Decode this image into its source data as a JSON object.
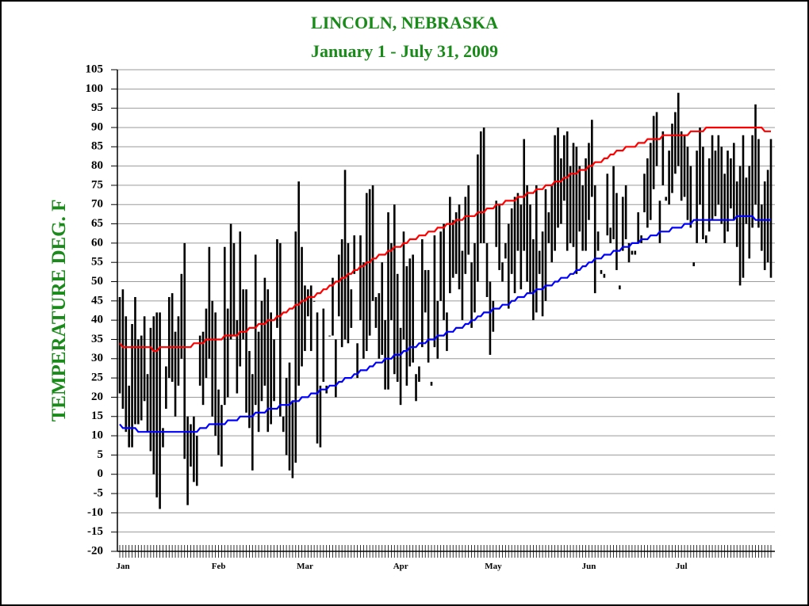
{
  "chart_data": {
    "type": "range_bar",
    "title": "LINCOLN, NEBRASKA",
    "subtitle": "January 1 - July 31,  2009",
    "y_label": "TEMPERATURE DEG. F",
    "ylim": [
      -20,
      105
    ],
    "yticks": [
      -20,
      -15,
      -10,
      -5,
      0,
      5,
      10,
      15,
      20,
      25,
      30,
      35,
      40,
      45,
      50,
      55,
      60,
      65,
      70,
      75,
      80,
      85,
      90,
      95,
      100,
      105
    ],
    "grid": true,
    "bar_color": "#000000",
    "normal_high_color": "#ff0000",
    "normal_low_color": "#0000ff",
    "title_color": "#1a8a1a",
    "categories": [
      "Jan",
      null,
      null,
      null,
      null,
      null,
      null,
      null,
      null,
      null,
      null,
      null,
      null,
      null,
      null,
      null,
      null,
      null,
      null,
      null,
      null,
      null,
      null,
      null,
      null,
      null,
      null,
      null,
      null,
      null,
      null,
      "Feb",
      null,
      null,
      null,
      null,
      null,
      null,
      null,
      null,
      null,
      null,
      null,
      null,
      null,
      null,
      null,
      null,
      null,
      null,
      null,
      null,
      null,
      null,
      null,
      null,
      null,
      null,
      null,
      "Mar",
      null,
      null,
      null,
      null,
      null,
      null,
      null,
      null,
      null,
      null,
      null,
      null,
      null,
      null,
      null,
      null,
      null,
      null,
      null,
      null,
      null,
      null,
      null,
      null,
      null,
      null,
      null,
      null,
      null,
      null,
      "Apr",
      null,
      null,
      null,
      null,
      null,
      null,
      null,
      null,
      null,
      null,
      null,
      null,
      null,
      null,
      null,
      null,
      null,
      null,
      null,
      null,
      null,
      null,
      null,
      null,
      null,
      null,
      null,
      null,
      null,
      "May",
      null,
      null,
      null,
      null,
      null,
      null,
      null,
      null,
      null,
      null,
      null,
      null,
      null,
      null,
      null,
      null,
      null,
      null,
      null,
      null,
      null,
      null,
      null,
      null,
      null,
      null,
      null,
      null,
      null,
      null,
      "Jun",
      null,
      null,
      null,
      null,
      null,
      null,
      null,
      null,
      null,
      null,
      null,
      null,
      null,
      null,
      null,
      null,
      null,
      null,
      null,
      null,
      null,
      null,
      null,
      null,
      null,
      null,
      null,
      null,
      null,
      "Jul",
      null,
      null,
      null,
      null,
      null,
      null,
      null,
      null,
      null,
      null,
      null,
      null,
      null,
      null,
      null,
      null,
      null,
      null,
      null,
      null,
      null,
      null,
      null,
      null,
      null,
      null,
      null,
      null,
      null,
      null
    ],
    "highs": [
      46,
      48,
      41,
      23,
      39,
      46,
      35,
      36,
      41,
      26,
      38,
      41,
      42,
      42,
      12,
      28,
      46,
      47,
      37,
      41,
      52,
      60,
      15,
      13,
      15,
      10,
      36,
      37,
      43,
      59,
      45,
      42,
      22,
      18,
      59,
      43,
      65,
      60,
      40,
      63,
      48,
      48,
      32,
      26,
      57,
      37,
      45,
      51,
      48,
      42,
      35,
      61,
      60,
      15,
      25,
      29,
      19,
      63,
      76,
      59,
      49,
      48,
      49,
      45,
      42,
      23,
      43,
      23,
      36,
      51,
      35,
      57,
      61,
      79,
      60,
      48,
      62,
      34,
      62,
      55,
      73,
      74,
      75,
      46,
      47,
      55,
      40,
      68,
      60,
      70,
      52,
      38,
      63,
      54,
      56,
      57,
      26,
      28,
      61,
      53,
      53,
      24,
      62,
      45,
      63,
      65,
      42,
      72,
      66,
      68,
      70,
      58,
      72,
      75,
      55,
      60,
      83,
      89,
      90,
      60,
      50,
      37,
      71,
      70,
      55,
      60,
      65,
      69,
      72,
      73,
      70,
      87,
      75,
      70,
      61,
      75,
      58,
      63,
      74,
      68,
      75,
      88,
      90,
      82,
      88,
      89,
      80,
      86,
      85,
      80,
      75,
      82,
      86,
      92,
      75,
      63,
      53,
      52,
      78,
      64,
      80,
      73,
      49,
      72,
      75,
      60,
      58,
      58,
      68,
      62,
      78,
      82,
      86,
      93,
      94,
      71,
      89,
      72,
      84,
      91,
      94,
      99,
      89,
      88,
      85,
      80,
      55,
      84,
      90,
      85,
      62,
      82,
      88,
      84,
      88,
      85,
      78,
      84,
      82,
      86,
      76,
      80,
      88,
      77,
      80,
      88,
      96,
      87,
      70,
      76,
      79,
      87
    ],
    "lows": [
      21,
      17,
      11,
      7,
      7,
      13,
      13,
      14,
      19,
      11,
      6,
      0,
      -6,
      -9,
      7,
      17,
      25,
      24,
      15,
      23,
      30,
      4,
      -8,
      2,
      -2,
      -3,
      23,
      18,
      25,
      30,
      15,
      10,
      5,
      2,
      18,
      20,
      35,
      36,
      21,
      28,
      35,
      16,
      12,
      1,
      18,
      11,
      19,
      23,
      11,
      13,
      19,
      38,
      15,
      11,
      5,
      1,
      -1,
      3,
      23,
      28,
      32,
      41,
      32,
      45,
      8,
      7,
      24,
      21,
      36,
      36,
      20,
      41,
      33,
      35,
      34,
      38,
      52,
      25,
      40,
      30,
      32,
      36,
      45,
      38,
      30,
      31,
      22,
      22,
      40,
      26,
      24,
      18,
      35,
      23,
      28,
      29,
      19,
      24,
      33,
      42,
      29,
      23,
      33,
      30,
      45,
      40,
      32,
      47,
      51,
      52,
      48,
      40,
      52,
      57,
      38,
      42,
      50,
      60,
      60,
      46,
      31,
      45,
      59,
      53,
      50,
      56,
      43,
      52,
      47,
      58,
      48,
      58,
      50,
      47,
      40,
      42,
      52,
      41,
      45,
      60,
      55,
      58,
      64,
      65,
      71,
      58,
      60,
      59,
      52,
      63,
      58,
      58,
      66,
      72,
      47,
      58,
      52,
      51,
      62,
      60,
      61,
      53,
      48,
      58,
      61,
      55,
      57,
      57,
      60,
      60,
      68,
      64,
      66,
      74,
      80,
      60,
      75,
      71,
      70,
      73,
      78,
      80,
      71,
      72,
      66,
      64,
      54,
      60,
      70,
      61,
      60,
      63,
      66,
      67,
      70,
      65,
      60,
      63,
      69,
      66,
      59,
      49,
      51,
      65,
      56,
      64,
      70,
      64,
      58,
      53,
      55,
      51
    ],
    "normal_high": [
      34,
      33,
      33,
      33,
      33,
      33,
      33,
      33,
      33,
      33,
      33,
      32,
      32,
      33,
      33,
      33,
      33,
      33,
      33,
      33,
      33,
      33,
      33,
      33,
      34,
      34,
      34,
      34,
      35,
      35,
      35,
      35,
      35,
      35,
      36,
      36,
      36,
      36,
      36,
      37,
      37,
      37,
      38,
      38,
      38,
      39,
      39,
      39,
      40,
      40,
      40,
      41,
      41,
      42,
      42,
      43,
      43,
      44,
      44,
      45,
      45,
      46,
      46,
      46,
      47,
      47,
      48,
      48,
      49,
      49,
      50,
      50,
      51,
      51,
      52,
      52,
      53,
      53,
      54,
      54,
      55,
      55,
      56,
      56,
      57,
      57,
      57,
      58,
      58,
      59,
      59,
      59,
      60,
      60,
      61,
      61,
      61,
      62,
      62,
      62,
      63,
      63,
      63,
      64,
      64,
      64,
      65,
      65,
      65,
      66,
      66,
      66,
      67,
      67,
      67,
      67,
      68,
      68,
      68,
      69,
      69,
      69,
      70,
      70,
      70,
      71,
      71,
      71,
      71,
      72,
      72,
      72,
      73,
      73,
      73,
      74,
      74,
      74,
      75,
      75,
      75,
      76,
      76,
      76,
      77,
      77,
      78,
      78,
      78,
      79,
      79,
      79,
      80,
      80,
      81,
      81,
      81,
      82,
      82,
      83,
      83,
      84,
      84,
      84,
      85,
      85,
      85,
      85,
      86,
      86,
      86,
      87,
      87,
      87,
      87,
      87,
      88,
      88,
      88,
      88,
      88,
      88,
      88,
      88,
      88,
      89,
      89,
      89,
      89,
      89,
      90,
      90,
      90,
      90,
      90,
      90,
      90,
      90,
      90,
      90,
      90,
      90,
      90,
      90,
      90,
      90,
      90,
      90,
      90,
      89,
      89,
      89
    ],
    "normal_low": [
      13,
      12,
      12,
      12,
      12,
      12,
      11,
      11,
      11,
      11,
      11,
      11,
      11,
      11,
      11,
      11,
      11,
      11,
      11,
      11,
      11,
      11,
      11,
      11,
      11,
      11,
      12,
      12,
      12,
      13,
      13,
      13,
      13,
      13,
      13,
      14,
      14,
      14,
      14,
      15,
      15,
      15,
      15,
      15,
      16,
      16,
      16,
      16,
      17,
      17,
      17,
      17,
      18,
      18,
      18,
      18,
      19,
      19,
      19,
      20,
      20,
      20,
      21,
      21,
      21,
      22,
      22,
      22,
      23,
      23,
      23,
      24,
      24,
      25,
      25,
      25,
      26,
      26,
      27,
      27,
      27,
      28,
      28,
      29,
      29,
      29,
      30,
      30,
      30,
      31,
      31,
      31,
      32,
      32,
      33,
      33,
      33,
      34,
      34,
      34,
      35,
      35,
      35,
      36,
      36,
      36,
      37,
      37,
      37,
      38,
      38,
      38,
      39,
      39,
      40,
      40,
      41,
      41,
      42,
      42,
      42,
      43,
      43,
      43,
      44,
      44,
      44,
      45,
      45,
      46,
      46,
      46,
      47,
      47,
      47,
      48,
      48,
      48,
      49,
      49,
      49,
      50,
      50,
      51,
      51,
      51,
      52,
      52,
      53,
      53,
      54,
      54,
      55,
      55,
      56,
      56,
      56,
      57,
      57,
      57,
      58,
      58,
      58,
      59,
      59,
      59,
      60,
      60,
      60,
      61,
      61,
      61,
      62,
      62,
      62,
      63,
      63,
      63,
      63,
      64,
      64,
      64,
      64,
      65,
      65,
      65,
      66,
      66,
      66,
      66,
      66,
      66,
      66,
      66,
      66,
      66,
      66,
      66,
      66,
      66,
      67,
      67,
      67,
      67,
      67,
      67,
      66,
      66,
      66,
      66,
      66,
      66
    ]
  }
}
